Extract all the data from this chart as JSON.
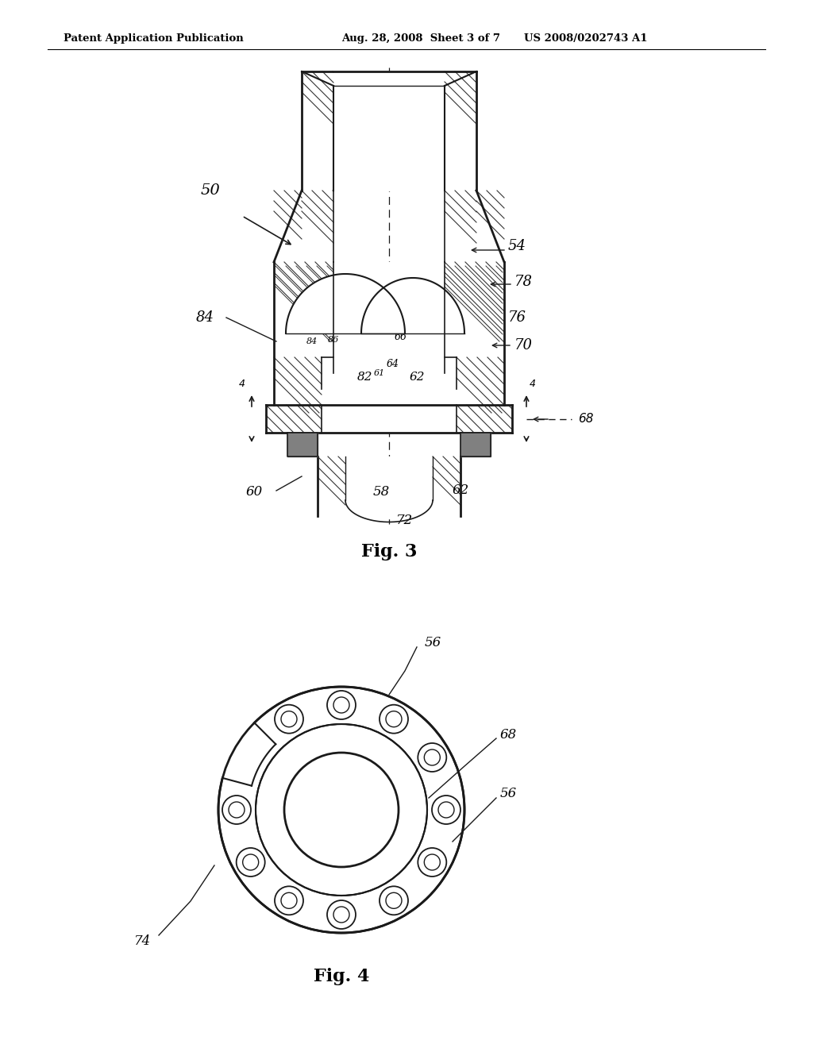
{
  "background_color": "#ffffff",
  "header_left": "Patent Application Publication",
  "header_mid": "Aug. 28, 2008  Sheet 3 of 7",
  "header_right": "US 2008/0202743 A1",
  "fig3_label": "Fig. 3",
  "fig4_label": "Fig. 4",
  "line_color": "#1a1a1a",
  "hatch_color": "#333333",
  "gray_fill": "#808080"
}
